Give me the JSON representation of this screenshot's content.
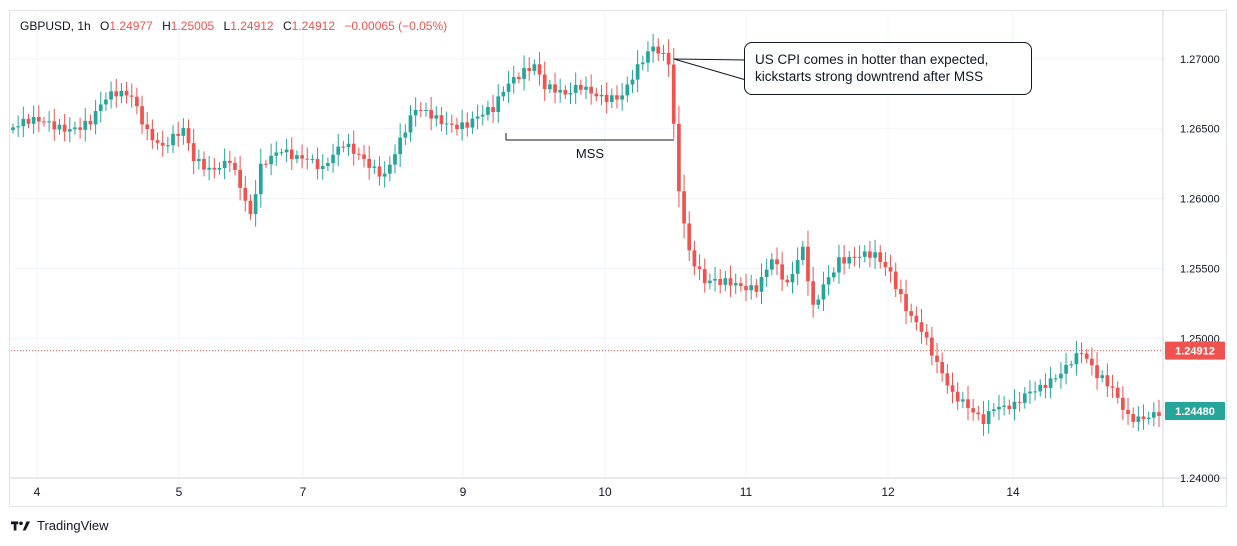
{
  "legend": {
    "symbol": "GBPUSD, 1h",
    "o_label": "O",
    "o_value": "1.24977",
    "h_label": "H",
    "h_value": "1.25005",
    "l_label": "L",
    "l_value": "1.24912",
    "c_label": "C",
    "c_value": "1.24912",
    "change": "−0.00065 (−0.05%)"
  },
  "annotation": {
    "text_line1": "US CPI comes in hotter than expected,",
    "text_line2": "kickstarts strong downtrend after MSS",
    "mss_label": "MSS"
  },
  "footer": {
    "brand": "TradingView"
  },
  "colors": {
    "up": "#26a69a",
    "down": "#ef5350",
    "grid": "#f0f3fa",
    "text": "#131722"
  },
  "chart_data": {
    "type": "candlestick",
    "symbol": "GBPUSD",
    "timeframe": "1h",
    "ylim": [
      1.24,
      1.2735
    ],
    "y_ticks": [
      "1.27000",
      "1.26500",
      "1.26000",
      "1.25500",
      "1.25000",
      "1.24000"
    ],
    "x_ticks": [
      "4",
      "5",
      "7",
      "9",
      "10",
      "11",
      "12",
      "14"
    ],
    "price_labels": [
      {
        "value": 1.24912,
        "text": "1.24912",
        "color": "#ef5350"
      },
      {
        "value": 1.2448,
        "text": "1.24480",
        "color": "#26a69a"
      }
    ],
    "mss_level": 1.2648,
    "anchors": [
      [
        0,
        1.2651
      ],
      [
        8,
        1.2653
      ],
      [
        15,
        1.2655
      ],
      [
        18,
        1.2668
      ],
      [
        20,
        1.2672
      ],
      [
        23,
        1.2675
      ],
      [
        26,
        1.2652
      ],
      [
        29,
        1.2638
      ],
      [
        33,
        1.2645
      ],
      [
        35,
        1.2625
      ],
      [
        38,
        1.2622
      ],
      [
        42,
        1.2632
      ],
      [
        44,
        1.261
      ],
      [
        46,
        1.2585
      ],
      [
        48,
        1.2618
      ],
      [
        52,
        1.2635
      ],
      [
        57,
        1.2633
      ],
      [
        60,
        1.262
      ],
      [
        64,
        1.2635
      ],
      [
        68,
        1.263
      ],
      [
        72,
        1.262
      ],
      [
        75,
        1.264
      ],
      [
        78,
        1.266
      ],
      [
        82,
        1.2658
      ],
      [
        88,
        1.2655
      ],
      [
        93,
        1.266
      ],
      [
        96,
        1.2682
      ],
      [
        99,
        1.2695
      ],
      [
        101,
        1.27
      ],
      [
        103,
        1.2682
      ],
      [
        107,
        1.267
      ],
      [
        110,
        1.2678
      ],
      [
        118,
        1.2675
      ],
      [
        121,
        1.269
      ],
      [
        124,
        1.2705
      ],
      [
        127,
        1.27
      ],
      [
        129,
        1.261
      ],
      [
        131,
        1.2565
      ],
      [
        134,
        1.254
      ],
      [
        137,
        1.2536
      ],
      [
        141,
        1.2537
      ],
      [
        144,
        1.254
      ],
      [
        147,
        1.256
      ],
      [
        150,
        1.2535
      ],
      [
        153,
        1.256
      ],
      [
        155,
        1.252
      ],
      [
        157,
        1.254
      ],
      [
        160,
        1.256
      ],
      [
        164,
        1.2558
      ],
      [
        167,
        1.2555
      ],
      [
        170,
        1.2545
      ],
      [
        173,
        1.2525
      ],
      [
        176,
        1.251
      ],
      [
        179,
        1.248
      ],
      [
        182,
        1.2455
      ],
      [
        185,
        1.245
      ],
      [
        188,
        1.2445
      ],
      [
        190,
        1.2455
      ],
      [
        194,
        1.245
      ],
      [
        196,
        1.2455
      ],
      [
        199,
        1.2462
      ],
      [
        202,
        1.2475
      ],
      [
        205,
        1.2488
      ],
      [
        207,
        1.2492
      ],
      [
        210,
        1.247
      ],
      [
        213,
        1.246
      ],
      [
        216,
        1.2445
      ],
      [
        220,
        1.2448
      ],
      [
        222,
        1.2448
      ]
    ],
    "candle_count": 223
  }
}
